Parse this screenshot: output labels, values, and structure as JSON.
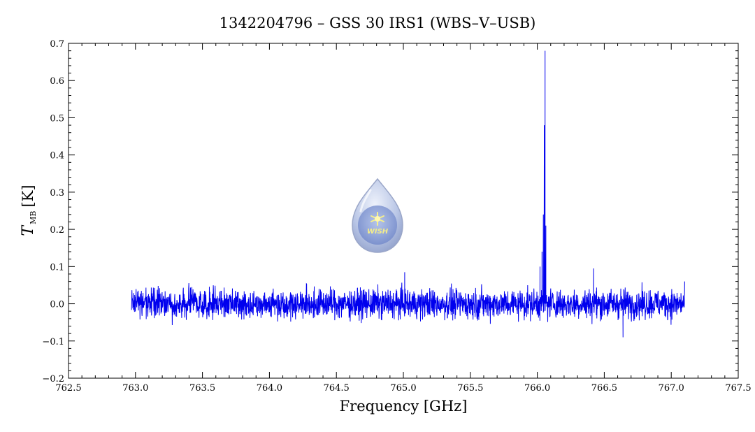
{
  "chart_data": {
    "type": "line",
    "title": "1342204796 – GSS 30 IRS1 (WBS–V–USB)",
    "xlabel": "Frequency [GHz]",
    "ylabel": "T",
    "ylabel_subscript": "MB",
    "ylabel_unit": "[K]",
    "xlim": [
      762.5,
      767.5
    ],
    "ylim": [
      -0.2,
      0.7
    ],
    "x_ticks": [
      "762.5",
      "763.0",
      "763.5",
      "764.0",
      "764.5",
      "765.0",
      "765.5",
      "766.0",
      "766.5",
      "767.0",
      "767.5"
    ],
    "y_ticks": [
      "−0.2",
      "−0.1",
      "0.0",
      "0.1",
      "0.2",
      "0.3",
      "0.4",
      "0.5",
      "0.6",
      "0.7"
    ],
    "grid": false,
    "legend": "none",
    "series_color": "#0000ee",
    "spectrum_range": [
      762.97,
      767.1
    ],
    "noise_rms": 0.02,
    "features": [
      {
        "x": 765.01,
        "y": 0.085
      },
      {
        "x": 766.02,
        "y": 0.1
      },
      {
        "x": 766.035,
        "y": 0.14
      },
      {
        "x": 766.045,
        "y": 0.24
      },
      {
        "x": 766.052,
        "y": 0.48
      },
      {
        "x": 766.058,
        "y": 0.68
      },
      {
        "x": 766.064,
        "y": 0.21
      },
      {
        "x": 766.42,
        "y": 0.095
      },
      {
        "x": 766.64,
        "y": -0.09
      }
    ],
    "watermark_text": "WISH"
  }
}
